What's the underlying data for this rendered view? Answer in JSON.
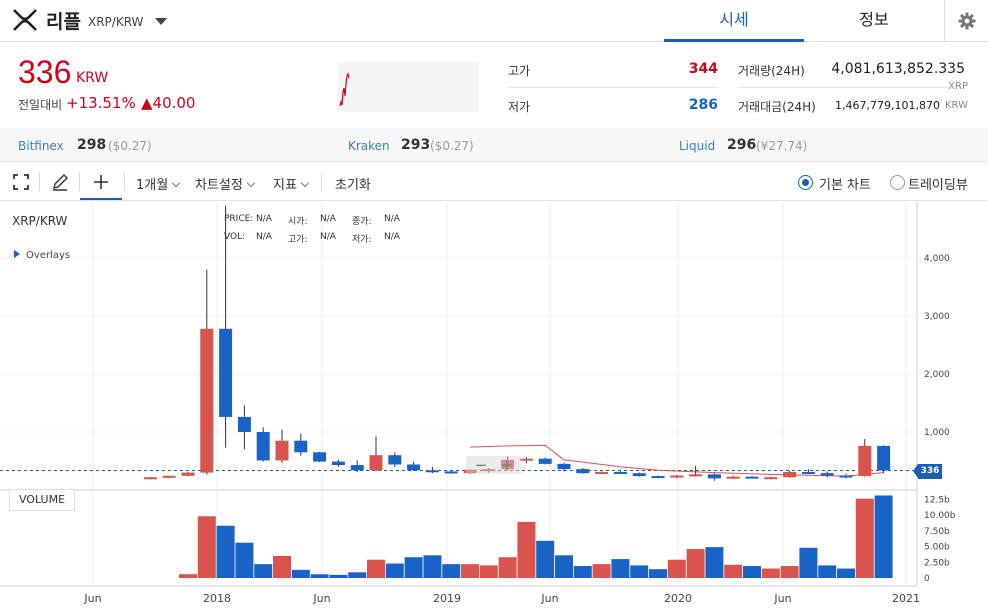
{
  "header": {
    "coin_name": "리플",
    "pair": "XRP/KRW",
    "tabs": {
      "market": "시세",
      "info": "정보"
    }
  },
  "price": {
    "current": "336",
    "unit": "KRW",
    "change_label": "전일대비",
    "change_pct": "+13.51%",
    "change_abs": "▲40.00"
  },
  "stats": {
    "high_label": "고가",
    "high": "344",
    "low_label": "저가",
    "low": "286",
    "volume_label": "거래량(24H)",
    "volume": "4,081,613,852.335",
    "volume_unit": "XRP",
    "turnover_label": "거래대금(24H)",
    "turnover": "1,467,779,101,870",
    "turnover_unit": "KRW"
  },
  "exchanges": [
    {
      "name": "Bitfinex",
      "price": "298",
      "sub": "($0.27)"
    },
    {
      "name": "Kraken",
      "price": "293",
      "sub": "($0.27)"
    },
    {
      "name": "Liquid",
      "price": "296",
      "sub": "(¥27.74)"
    }
  ],
  "toolbar": {
    "period": "1개월",
    "chart_settings": "차트설정",
    "indicators": "지표",
    "reset": "초기화",
    "basic_chart": "기본 차트",
    "tradingview": "트레이딩뷰"
  },
  "chart_meta": {
    "symbol": "XRP/KRW",
    "overlays": "Overlays",
    "volume_label": "VOLUME",
    "last_price_tag": "336",
    "ohlc_labels": {
      "price": "PRICE:",
      "vol": "VOL:",
      "open": "시가:",
      "high": "고가:",
      "close": "종가:",
      "low": "저가:",
      "na": "N/A"
    },
    "zoom_minus": "−",
    "zoom_plus": "+",
    "colors": {
      "up": "#d9534f",
      "down": "#1a63c6",
      "accent": "#1a5fb4",
      "price_up": "#d0021b"
    }
  },
  "chart_data": {
    "type": "candlestick",
    "interval": "1개월",
    "x_ticks": [
      "Jun",
      "2018",
      "Jun",
      "2019",
      "Jun",
      "2020",
      "Jun",
      "2021"
    ],
    "price_axis": {
      "ticks": [
        "1,000",
        "2,000",
        "3,000",
        "4,000"
      ],
      "ylim": [
        0,
        4900
      ]
    },
    "volume_axis": {
      "ticks": [
        "0",
        "2.50b",
        "5.00b",
        "7.50b",
        "10.00b",
        "12.5b"
      ],
      "ylim": [
        0,
        13
      ]
    },
    "candles": [
      {
        "o": 185,
        "h": 225,
        "l": 180,
        "c": 220,
        "v": 0
      },
      {
        "o": 220,
        "h": 240,
        "l": 200,
        "c": 245,
        "v": 0
      },
      {
        "o": 245,
        "h": 310,
        "l": 240,
        "c": 300,
        "v": 0.6
      },
      {
        "o": 300,
        "h": 3800,
        "l": 270,
        "c": 2780,
        "v": 9.8
      },
      {
        "o": 2780,
        "h": 4900,
        "l": 730,
        "c": 1260,
        "v": 8.3
      },
      {
        "o": 1260,
        "h": 1460,
        "l": 700,
        "c": 1000,
        "v": 5.6
      },
      {
        "o": 1000,
        "h": 1080,
        "l": 490,
        "c": 510,
        "v": 2.2
      },
      {
        "o": 510,
        "h": 1040,
        "l": 470,
        "c": 850,
        "v": 3.5
      },
      {
        "o": 850,
        "h": 970,
        "l": 590,
        "c": 650,
        "v": 1.3
      },
      {
        "o": 650,
        "h": 660,
        "l": 480,
        "c": 490,
        "v": 0.6
      },
      {
        "o": 490,
        "h": 520,
        "l": 400,
        "c": 430,
        "v": 0.5
      },
      {
        "o": 430,
        "h": 510,
        "l": 310,
        "c": 340,
        "v": 0.9
      },
      {
        "o": 340,
        "h": 920,
        "l": 320,
        "c": 600,
        "v": 2.9
      },
      {
        "o": 600,
        "h": 650,
        "l": 400,
        "c": 440,
        "v": 2.3
      },
      {
        "o": 440,
        "h": 490,
        "l": 330,
        "c": 340,
        "v": 3.3
      },
      {
        "o": 340,
        "h": 400,
        "l": 290,
        "c": 320,
        "v": 3.6
      },
      {
        "o": 320,
        "h": 340,
        "l": 280,
        "c": 290,
        "v": 2.2
      },
      {
        "o": 290,
        "h": 350,
        "l": 275,
        "c": 350,
        "v": 2.2
      },
      {
        "o": 350,
        "h": 380,
        "l": 300,
        "c": 360,
        "v": 2.0
      },
      {
        "o": 360,
        "h": 580,
        "l": 350,
        "c": 520,
        "v": 3.3
      },
      {
        "o": 520,
        "h": 560,
        "l": 460,
        "c": 540,
        "v": 8.9
      },
      {
        "o": 540,
        "h": 560,
        "l": 440,
        "c": 450,
        "v": 5.9
      },
      {
        "o": 450,
        "h": 470,
        "l": 320,
        "c": 360,
        "v": 3.6
      },
      {
        "o": 360,
        "h": 380,
        "l": 280,
        "c": 290,
        "v": 1.9
      },
      {
        "o": 290,
        "h": 320,
        "l": 270,
        "c": 310,
        "v": 2.2
      },
      {
        "o": 310,
        "h": 330,
        "l": 280,
        "c": 290,
        "v": 3.0
      },
      {
        "o": 290,
        "h": 300,
        "l": 230,
        "c": 240,
        "v": 2.0
      },
      {
        "o": 240,
        "h": 250,
        "l": 210,
        "c": 220,
        "v": 1.4
      },
      {
        "o": 220,
        "h": 260,
        "l": 200,
        "c": 250,
        "v": 2.9
      },
      {
        "o": 250,
        "h": 420,
        "l": 230,
        "c": 270,
        "v": 4.6
      },
      {
        "o": 270,
        "h": 290,
        "l": 160,
        "c": 200,
        "v": 4.9
      },
      {
        "o": 200,
        "h": 250,
        "l": 190,
        "c": 230,
        "v": 2.1
      },
      {
        "o": 230,
        "h": 240,
        "l": 200,
        "c": 210,
        "v": 1.9
      },
      {
        "o": 210,
        "h": 230,
        "l": 190,
        "c": 220,
        "v": 1.5
      },
      {
        "o": 220,
        "h": 330,
        "l": 210,
        "c": 310,
        "v": 1.9
      },
      {
        "o": 310,
        "h": 360,
        "l": 280,
        "c": 290,
        "v": 4.8
      },
      {
        "o": 290,
        "h": 320,
        "l": 220,
        "c": 250,
        "v": 2.0
      },
      {
        "o": 250,
        "h": 280,
        "l": 200,
        "c": 240,
        "v": 1.5
      },
      {
        "o": 240,
        "h": 880,
        "l": 230,
        "c": 760,
        "v": 12.6
      },
      {
        "o": 760,
        "h": 770,
        "l": 290,
        "c": 336,
        "v": 13.1
      }
    ],
    "moving_average": [
      {
        "i": 17,
        "v": 740
      },
      {
        "i": 19,
        "v": 760
      },
      {
        "i": 21,
        "v": 770
      },
      {
        "i": 22,
        "v": 520
      },
      {
        "i": 23,
        "v": 480
      },
      {
        "i": 25,
        "v": 400
      },
      {
        "i": 27,
        "v": 340
      },
      {
        "i": 30,
        "v": 300
      },
      {
        "i": 34,
        "v": 260
      },
      {
        "i": 37,
        "v": 240
      },
      {
        "i": 39,
        "v": 300
      }
    ],
    "last_price": 336
  }
}
